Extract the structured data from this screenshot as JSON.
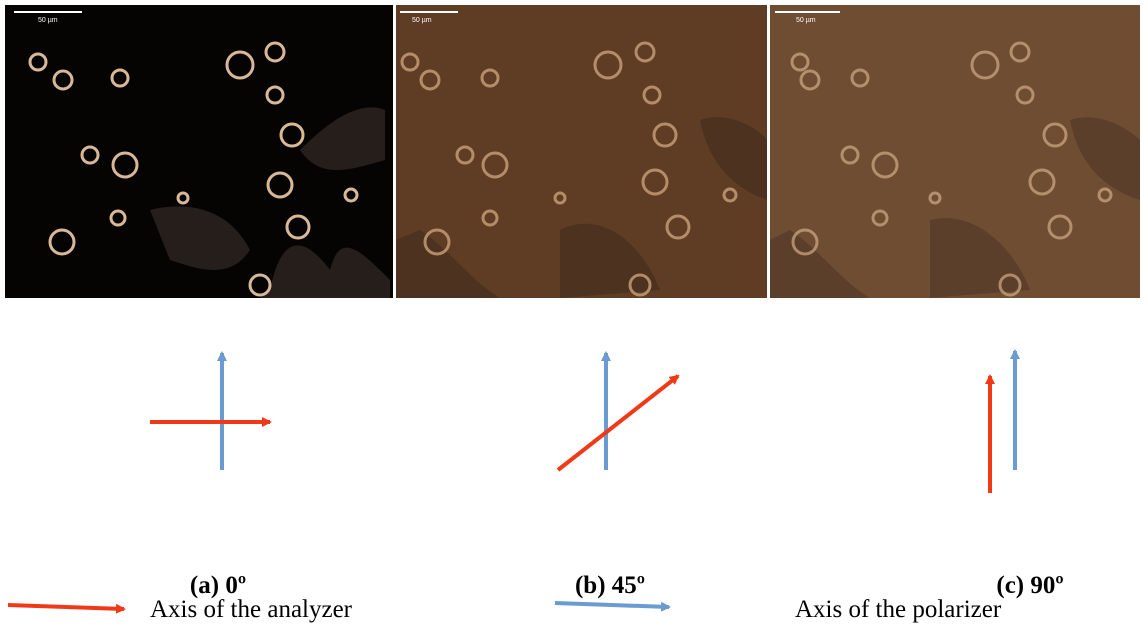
{
  "panels": [
    {
      "scale_bar": "50 µm",
      "label": "(a) 0º"
    },
    {
      "scale_bar": "50 µm",
      "label": "(b) 45º"
    },
    {
      "scale_bar": "50 µm",
      "label": "(c) 90º"
    }
  ],
  "legend": [
    {
      "label": "Axis of the analyzer"
    },
    {
      "label": "Axis of the polarizer"
    }
  ]
}
